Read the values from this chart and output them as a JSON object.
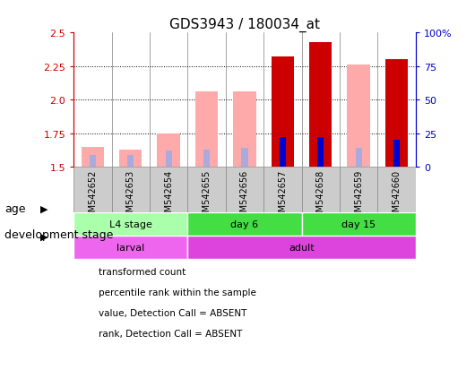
{
  "title": "GDS3943 / 180034_at",
  "samples": [
    "GSM542652",
    "GSM542653",
    "GSM542654",
    "GSM542655",
    "GSM542656",
    "GSM542657",
    "GSM542658",
    "GSM542659",
    "GSM542660"
  ],
  "ylim": [
    1.5,
    2.5
  ],
  "yticks": [
    1.5,
    1.75,
    2.0,
    2.25,
    2.5
  ],
  "y2lim": [
    0,
    100
  ],
  "y2ticks": [
    0,
    25,
    50,
    75,
    100
  ],
  "absent_value_heights": [
    1.65,
    1.63,
    1.75,
    2.06,
    2.06,
    null,
    null,
    2.26,
    null
  ],
  "absent_rank_heights": [
    1.59,
    1.59,
    1.62,
    1.63,
    1.64,
    null,
    null,
    1.64,
    null
  ],
  "present_value_heights": [
    null,
    null,
    null,
    null,
    null,
    2.32,
    2.43,
    null,
    2.3
  ],
  "present_rank_heights": [
    null,
    null,
    null,
    null,
    null,
    1.72,
    1.72,
    null,
    1.7
  ],
  "bar_bottom": 1.5,
  "bar_width": 0.6,
  "color_absent_value": "#ffaaaa",
  "color_absent_rank": "#aaaadd",
  "color_present_value": "#cc0000",
  "color_present_rank": "#0000cc",
  "age_groups": [
    {
      "label": "L4 stage",
      "start": 0,
      "end": 3,
      "color": "#aaffaa"
    },
    {
      "label": "day 6",
      "start": 3,
      "end": 6,
      "color": "#44dd44"
    },
    {
      "label": "day 15",
      "start": 6,
      "end": 9,
      "color": "#44dd44"
    }
  ],
  "dev_groups": [
    {
      "label": "larval",
      "start": 0,
      "end": 3,
      "color": "#ee66ee"
    },
    {
      "label": "adult",
      "start": 3,
      "end": 9,
      "color": "#dd44dd"
    }
  ],
  "legend_items": [
    {
      "label": "transformed count",
      "color": "#cc0000"
    },
    {
      "label": "percentile rank within the sample",
      "color": "#0000cc"
    },
    {
      "label": "value, Detection Call = ABSENT",
      "color": "#ffaaaa"
    },
    {
      "label": "rank, Detection Call = ABSENT",
      "color": "#aaaadd"
    }
  ],
  "background_color": "#ffffff",
  "left_axis_color": "#cc0000",
  "right_axis_color": "#0000cc",
  "sample_box_color": "#cccccc",
  "sample_box_edge": "#888888"
}
